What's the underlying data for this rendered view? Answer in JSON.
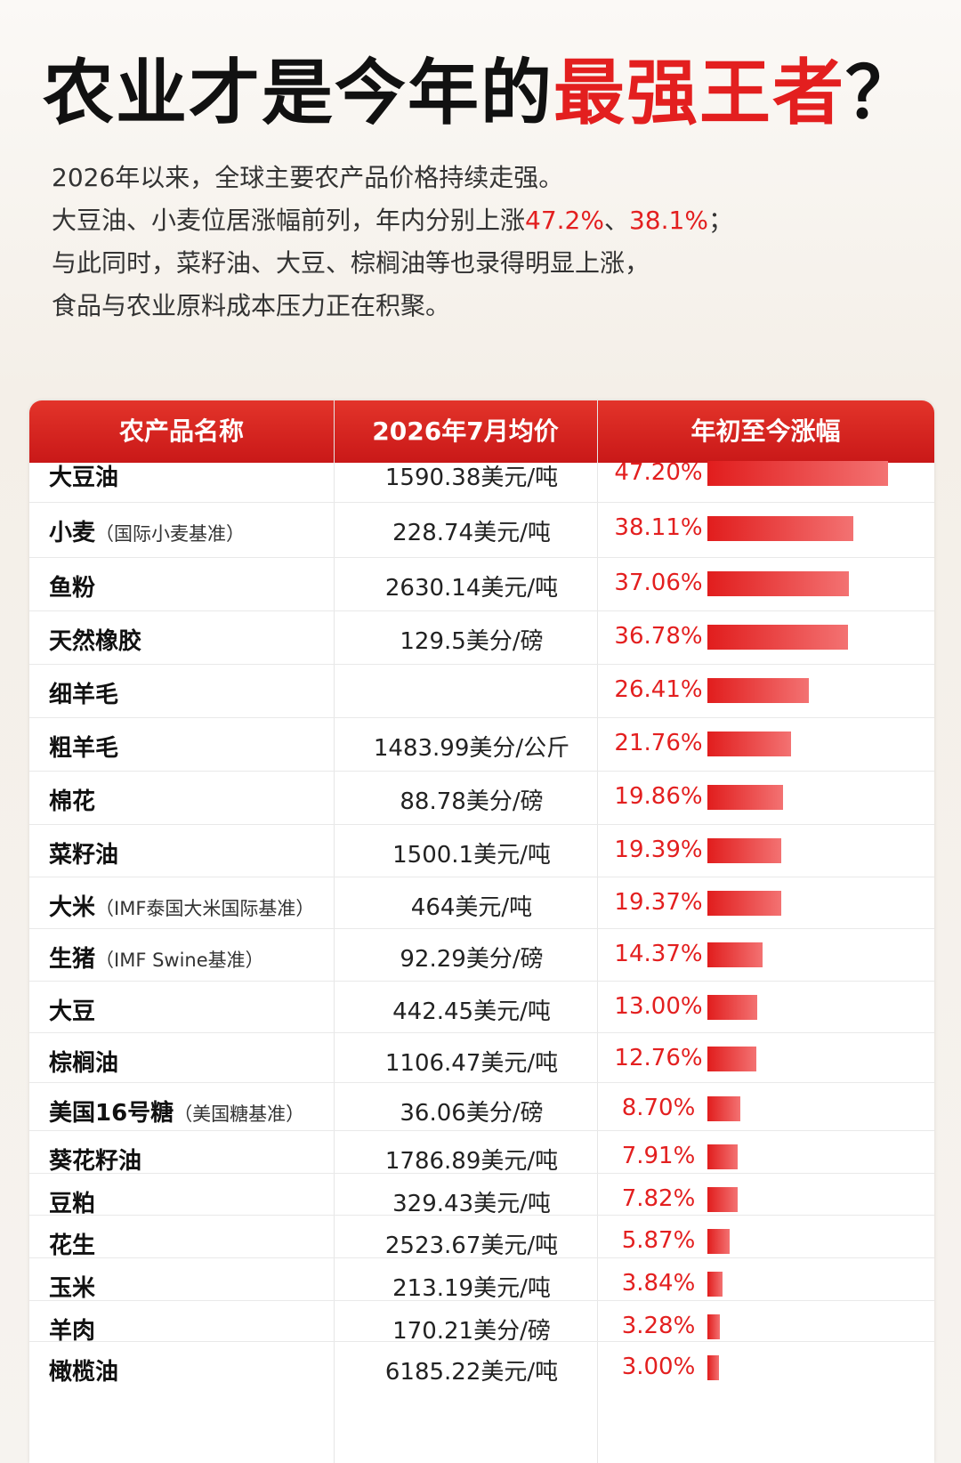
{
  "title": {
    "lead": "农业才是今年的",
    "highlight": "最强王者",
    "end": "？"
  },
  "intro": {
    "line1": "2026年以来，全球主要农产品价格持续走强。",
    "line2_lead": "大豆油、小麦位居涨幅前列，年内分别上涨",
    "line2_v1": "47.2%",
    "line2_sep": "、",
    "line2_v2": "38.1%",
    "line2_end": "；",
    "line3": "与此同时，菜籽油、大豆、棕榈油等也录得明显上涨，",
    "line4": "食品与农业原料成本压力正在积聚。"
  },
  "table": {
    "columns": [
      "农产品名称",
      "2026年7月均价",
      "年初至今涨幅"
    ],
    "rows": [
      {
        "name": "大豆油",
        "note": null,
        "price": "1590.38美元/吨",
        "change": 47.2,
        "change_label": "47.20%"
      },
      {
        "name": "小麦",
        "note": "（国际小麦基准）",
        "price": "228.74美元/吨",
        "change": 38.11,
        "change_label": "38.11%"
      },
      {
        "name": "鱼粉",
        "note": null,
        "price": "2630.14美元/吨",
        "change": 37.06,
        "change_label": "37.06%"
      },
      {
        "name": "天然橡胶",
        "note": null,
        "price": "129.5美分/磅",
        "change": 36.78,
        "change_label": "36.78%"
      },
      {
        "name": "细羊毛",
        "note": null,
        "price": null,
        "change": 26.41,
        "change_label": "26.41%"
      },
      {
        "name": "粗羊毛",
        "note": null,
        "price": "1483.99美分/公斤",
        "change": 21.76,
        "change_label": "21.76%"
      },
      {
        "name": "棉花",
        "note": null,
        "price": "88.78美分/磅",
        "change": 19.86,
        "change_label": "19.86%"
      },
      {
        "name": "菜籽油",
        "note": null,
        "price": "1500.1美元/吨",
        "change": 19.39,
        "change_label": "19.39%"
      },
      {
        "name": "大米",
        "note": "（IMF泰国大米国际基准）",
        "price": "464美元/吨",
        "change": 19.37,
        "change_label": "19.37%"
      },
      {
        "name": "生猪",
        "note": "（IMF Swine基准）",
        "price": "92.29美分/磅",
        "change": 14.37,
        "change_label": "14.37%"
      },
      {
        "name": "大豆",
        "note": null,
        "price": "442.45美元/吨",
        "change": 13.0,
        "change_label": "13.00%"
      },
      {
        "name": "棕榈油",
        "note": null,
        "price": "1106.47美元/吨",
        "change": 12.76,
        "change_label": "12.76%"
      },
      {
        "name": "美国16号糖",
        "note": "（美国糖基准）",
        "price": "36.06美分/磅",
        "change": 8.7,
        "change_label": "8.70%"
      },
      {
        "name": "葵花籽油",
        "note": null,
        "price": "1786.89美元/吨",
        "change": 7.91,
        "change_label": "7.91%"
      },
      {
        "name": "豆粕",
        "note": null,
        "price": "329.43美元/吨",
        "change": 7.82,
        "change_label": "7.82%"
      },
      {
        "name": "花生",
        "note": null,
        "price": "2523.67美元/吨",
        "change": 5.87,
        "change_label": "5.87%"
      },
      {
        "name": "玉米",
        "note": null,
        "price": "213.19美元/吨",
        "change": 3.84,
        "change_label": "3.84%"
      },
      {
        "name": "羊肉",
        "note": null,
        "price": "170.21美分/磅",
        "change": 3.28,
        "change_label": "3.28%"
      },
      {
        "name": "橄榄油",
        "note": null,
        "price": "6185.22美元/吨",
        "change": 3.0,
        "change_label": "3.00%"
      }
    ]
  }
}
